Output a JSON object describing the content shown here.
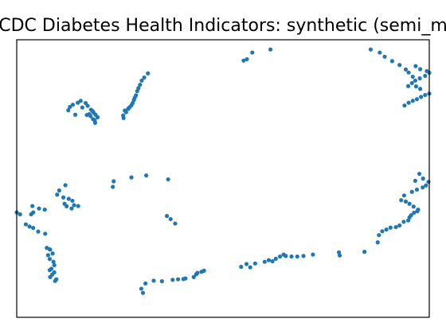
{
  "chart_data": {
    "type": "scatter",
    "title": "CDC Diabetes Health Indicators: synthetic (semi_m",
    "xlabel": "",
    "ylabel": "",
    "xlim": [
      0,
      100
    ],
    "ylim": [
      0,
      100
    ],
    "grid": false,
    "axis_ticks": false,
    "point_color": "#1f77b4",
    "series": [
      {
        "x": [
          25.9,
          25.8,
          26.5,
          26.2,
          27.0,
          27.3,
          27.8,
          28.1,
          28.4,
          28.6,
          28.9,
          29.2,
          29.5,
          29.9,
          30.3,
          30.9,
          31.8,
          14.2,
          12.5,
          12.9,
          13.6,
          14.8,
          15.5,
          16.7,
          15.9,
          17.2,
          18.0,
          18.6,
          19.1,
          19.6,
          17.9,
          18.5,
          18.9,
          19.0,
          18.4,
          17.6,
          17.0,
          23.3,
          23.5,
          27.8,
          31.4,
          36.7,
          11.8,
          10.3,
          9.8,
          11.3,
          12.6,
          13.5,
          11.6,
          12.1,
          13.9,
          14.9,
          13.3,
          6.8,
          5.4,
          3.8,
          4.0,
          3.5,
          0.0,
          0.8,
          2.2,
          3.1,
          4.0,
          5.2,
          6.9,
          8.0,
          7.3,
          8.1,
          8.7,
          7.6,
          8.0,
          8.9,
          9.1,
          8.4,
          8.0,
          9.1,
          8.6,
          8.1,
          9.6,
          9.3,
          30.6,
          30.2,
          31.2,
          33.2,
          35.2,
          37.8,
          39.1,
          40.4,
          40.9,
          42.9,
          43.5,
          43.8,
          44.8,
          45.4,
          54.4,
          55.7,
          56.6,
          57.8,
          60.1,
          61.1,
          62.0,
          62.8,
          63.8,
          64.7,
          65.2,
          66.6,
          68.0,
          69.5,
          71.8,
          78.1,
          78.3,
          84.3,
          87.5,
          87.8,
          88.6,
          89.6,
          90.6,
          91.9,
          92.8,
          93.8,
          94.9,
          95.2,
          95.6,
          96.3,
          97.1,
          97.3,
          96.2,
          95.2,
          94.3,
          93.2,
          93.9,
          95.8,
          97.0,
          98.4,
          99.2,
          99.8,
          98.5,
          97.6,
          96.6,
          94.0,
          95.0,
          96.0,
          97.0,
          98.0,
          99.0,
          100.0,
          97.8,
          96.8,
          94.9,
          95.8,
          96.6,
          97.7,
          99.0,
          100.0,
          99.4,
          97.8,
          96.7,
          85.8,
          88.0,
          89.2,
          91.0,
          92.8,
          94.3,
          95.0,
          96.0,
          55.0,
          55.8,
          57.1,
          61.5,
          38.4,
          37.3,
          36.4
        ],
        "y": [
          71.8,
          72.7,
          73.9,
          74.5,
          75.1,
          75.6,
          76.4,
          77.2,
          78.3,
          79.1,
          80.0,
          81.5,
          82.6,
          83.8,
          85.3,
          86.4,
          87.9,
          73.0,
          74.6,
          75.8,
          76.6,
          77.3,
          78.0,
          77.2,
          75.6,
          76.2,
          74.8,
          73.8,
          73.0,
          72.1,
          72.5,
          71.4,
          71.0,
          70.1,
          74.3,
          73.2,
          72.9,
          47.0,
          49.0,
          50.4,
          51.1,
          49.7,
          47.6,
          45.7,
          44.2,
          43.2,
          42.7,
          42.0,
          40.9,
          40.0,
          40.4,
          40.1,
          39.2,
          38.8,
          39.2,
          40.1,
          37.8,
          37.1,
          37.8,
          37.1,
          33.5,
          32.7,
          32.2,
          30.9,
          30.1,
          24.5,
          25.0,
          24.4,
          23.0,
          22.4,
          21.0,
          20.0,
          18.8,
          17.5,
          17.0,
          16.2,
          15.4,
          14.5,
          13.7,
          13.1,
          8.8,
          10.3,
          12.2,
          13.2,
          13.0,
          13.5,
          13.7,
          13.8,
          14.0,
          14.5,
          15.5,
          16.0,
          16.4,
          16.8,
          18.2,
          19.2,
          18.0,
          19.4,
          20.0,
          20.6,
          20.2,
          21.1,
          21.9,
          22.6,
          22.1,
          21.9,
          21.9,
          22.1,
          22.6,
          23.4,
          22.3,
          23.6,
          27.0,
          29.6,
          31.0,
          31.6,
          32.3,
          32.5,
          33.1,
          34.4,
          34.9,
          36.0,
          36.8,
          37.7,
          38.2,
          38.8,
          39.9,
          40.9,
          41.7,
          42.2,
          43.9,
          45.2,
          46.0,
          46.8,
          47.5,
          48.8,
          50.0,
          51.7,
          49.2,
          76.3,
          77.3,
          78.0,
          78.6,
          79.4,
          80.1,
          80.6,
          82.3,
          83.2,
          83.3,
          84.4,
          85.3,
          86.1,
          87.0,
          88.1,
          88.7,
          89.4,
          90.5,
          96.5,
          95.4,
          93.9,
          92.3,
          90.9,
          89.3,
          88.2,
          86.7,
          92.5,
          93.0,
          95.4,
          96.5,
          33.8,
          35.4,
          36.5
        ]
      }
    ]
  }
}
